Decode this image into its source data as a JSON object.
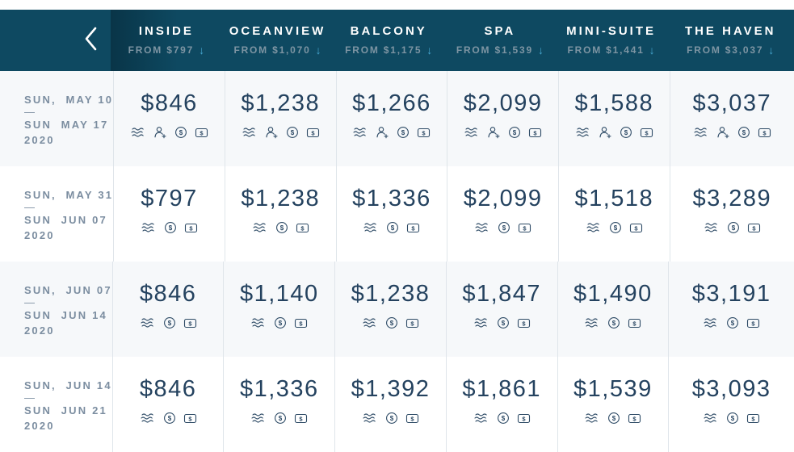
{
  "colors": {
    "header_bg": "#0E4961",
    "header_label": "#FFFFFF",
    "from_text": "#7E95A3",
    "sort_arrow": "#45A5CE",
    "price_text": "#24425F",
    "date_text": "#7B8DA0",
    "divider": "#DFE5EA",
    "row_stripe": "#F6F8FA",
    "icon_stroke": "#2E4B66"
  },
  "header": {
    "back_icon": "chevron-left",
    "columns": [
      {
        "label": "INSIDE",
        "from": "FROM $797",
        "arrow": "↓"
      },
      {
        "label": "OCEANVIEW",
        "from": "FROM $1,070",
        "arrow": "↓"
      },
      {
        "label": "BALCONY",
        "from": "FROM $1,175",
        "arrow": "↓"
      },
      {
        "label": "SPA",
        "from": "FROM $1,539",
        "arrow": "↓"
      },
      {
        "label": "MINI-SUITE",
        "from": "FROM $1,441",
        "arrow": "↓"
      },
      {
        "label": "THE HAVEN",
        "from": "FROM $3,037",
        "arrow": "↓"
      }
    ]
  },
  "rows": [
    {
      "date": {
        "start": "SUN,  MAY 10",
        "separator": "—",
        "end": "SUN  MAY 17",
        "year": "2020"
      },
      "prices": [
        {
          "value": "$846",
          "icons": [
            "waves",
            "person-plus",
            "dollar-circle",
            "dollar-square"
          ]
        },
        {
          "value": "$1,238",
          "icons": [
            "waves",
            "person-plus",
            "dollar-circle",
            "dollar-square"
          ]
        },
        {
          "value": "$1,266",
          "icons": [
            "waves",
            "person-plus",
            "dollar-circle",
            "dollar-square"
          ]
        },
        {
          "value": "$2,099",
          "icons": [
            "waves",
            "person-plus",
            "dollar-circle",
            "dollar-square"
          ]
        },
        {
          "value": "$1,588",
          "icons": [
            "waves",
            "person-plus",
            "dollar-circle",
            "dollar-square"
          ]
        },
        {
          "value": "$3,037",
          "icons": [
            "waves",
            "person-plus",
            "dollar-circle",
            "dollar-square"
          ]
        }
      ]
    },
    {
      "date": {
        "start": "SUN,  MAY 31",
        "separator": "—",
        "end": "SUN  JUN 07",
        "year": "2020"
      },
      "prices": [
        {
          "value": "$797",
          "icons": [
            "waves",
            "dollar-circle",
            "dollar-square"
          ]
        },
        {
          "value": "$1,238",
          "icons": [
            "waves",
            "dollar-circle",
            "dollar-square"
          ]
        },
        {
          "value": "$1,336",
          "icons": [
            "waves",
            "dollar-circle",
            "dollar-square"
          ]
        },
        {
          "value": "$2,099",
          "icons": [
            "waves",
            "dollar-circle",
            "dollar-square"
          ]
        },
        {
          "value": "$1,518",
          "icons": [
            "waves",
            "dollar-circle",
            "dollar-square"
          ]
        },
        {
          "value": "$3,289",
          "icons": [
            "waves",
            "dollar-circle",
            "dollar-square"
          ]
        }
      ]
    },
    {
      "date": {
        "start": "SUN,  JUN 07",
        "separator": "—",
        "end": "SUN  JUN 14",
        "year": "2020"
      },
      "prices": [
        {
          "value": "$846",
          "icons": [
            "waves",
            "dollar-circle",
            "dollar-square"
          ]
        },
        {
          "value": "$1,140",
          "icons": [
            "waves",
            "dollar-circle",
            "dollar-square"
          ]
        },
        {
          "value": "$1,238",
          "icons": [
            "waves",
            "dollar-circle",
            "dollar-square"
          ]
        },
        {
          "value": "$1,847",
          "icons": [
            "waves",
            "dollar-circle",
            "dollar-square"
          ]
        },
        {
          "value": "$1,490",
          "icons": [
            "waves",
            "dollar-circle",
            "dollar-square"
          ]
        },
        {
          "value": "$3,191",
          "icons": [
            "waves",
            "dollar-circle",
            "dollar-square"
          ]
        }
      ]
    },
    {
      "date": {
        "start": "SUN,  JUN 14",
        "separator": "—",
        "end": "SUN  JUN 21",
        "year": "2020"
      },
      "prices": [
        {
          "value": "$846",
          "icons": [
            "waves",
            "dollar-circle",
            "dollar-square"
          ]
        },
        {
          "value": "$1,336",
          "icons": [
            "waves",
            "dollar-circle",
            "dollar-square"
          ]
        },
        {
          "value": "$1,392",
          "icons": [
            "waves",
            "dollar-circle",
            "dollar-square"
          ]
        },
        {
          "value": "$1,861",
          "icons": [
            "waves",
            "dollar-circle",
            "dollar-square"
          ]
        },
        {
          "value": "$1,539",
          "icons": [
            "waves",
            "dollar-circle",
            "dollar-square"
          ]
        },
        {
          "value": "$3,093",
          "icons": [
            "waves",
            "dollar-circle",
            "dollar-square"
          ]
        }
      ]
    }
  ]
}
